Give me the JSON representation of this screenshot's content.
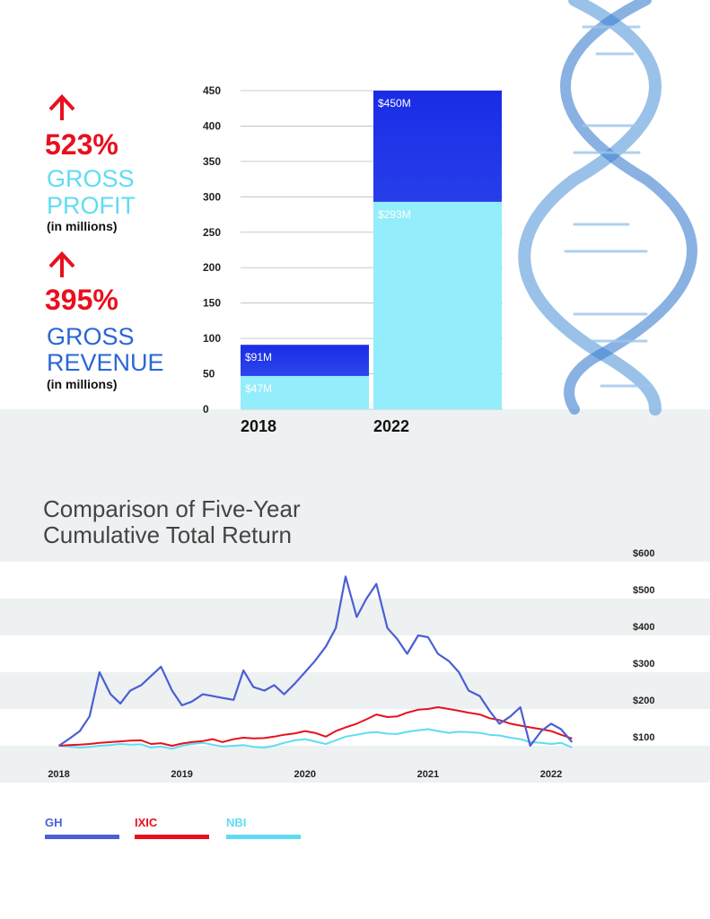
{
  "stats": [
    {
      "value": "523%",
      "label": [
        "GROSS",
        "PROFIT"
      ],
      "note": "(in millions)"
    },
    {
      "value": "395%",
      "label": [
        "GROSS",
        "REVENUE"
      ],
      "note": "(in millions)"
    }
  ],
  "chart_data": [
    {
      "type": "bar",
      "categories": [
        "2018",
        "2022"
      ],
      "series": [
        {
          "color": "#1f36ea",
          "values": [
            91,
            450
          ],
          "value_labels": [
            "$91M",
            "$450M"
          ]
        },
        {
          "color": "#94edfb",
          "values": [
            47,
            293
          ],
          "value_labels": [
            "$47M",
            "$293M"
          ]
        }
      ],
      "ylim": [
        0,
        450
      ],
      "yticks": [
        0,
        50,
        100,
        150,
        200,
        250,
        300,
        350,
        400,
        450
      ],
      "grid": true
    },
    {
      "type": "line",
      "title": [
        "Comparison of Five-Year",
        "Cumulative Total Return"
      ],
      "x": [
        2018.0,
        2018.08,
        2018.17,
        2018.25,
        2018.33,
        2018.42,
        2018.5,
        2018.58,
        2018.67,
        2018.75,
        2018.83,
        2018.92,
        2019.0,
        2019.08,
        2019.17,
        2019.25,
        2019.33,
        2019.42,
        2019.5,
        2019.58,
        2019.67,
        2019.75,
        2019.83,
        2019.92,
        2020.0,
        2020.08,
        2020.17,
        2020.25,
        2020.33,
        2020.42,
        2020.5,
        2020.58,
        2020.67,
        2020.75,
        2020.83,
        2020.92,
        2021.0,
        2021.08,
        2021.17,
        2021.25,
        2021.33,
        2021.42,
        2021.5,
        2021.58,
        2021.67,
        2021.75,
        2021.83,
        2021.92,
        2022.0,
        2022.08,
        2022.17
      ],
      "xlim": [
        2017.85,
        2022.62
      ],
      "xticks": [
        2018,
        2019,
        2020,
        2021,
        2022
      ],
      "ylim": [
        0,
        600
      ],
      "yticks": [
        {
          "value": 100,
          "label": "$100"
        },
        {
          "value": 200,
          "label": "$200"
        },
        {
          "value": 300,
          "label": "$300"
        },
        {
          "value": 400,
          "label": "$400"
        },
        {
          "value": 500,
          "label": "$500"
        },
        {
          "value": 600,
          "label": "$600"
        }
      ],
      "series": [
        {
          "name": "GH",
          "color": "#4a5fd4",
          "values": [
            100,
            118,
            140,
            180,
            300,
            240,
            215,
            250,
            265,
            290,
            315,
            250,
            210,
            220,
            240,
            235,
            230,
            225,
            305,
            260,
            250,
            265,
            240,
            270,
            300,
            330,
            370,
            420,
            560,
            450,
            500,
            540,
            420,
            390,
            350,
            400,
            395,
            350,
            330,
            300,
            250,
            235,
            195,
            160,
            180,
            205,
            100,
            140,
            160,
            145,
            110
          ]
        },
        {
          "name": "IXIC",
          "color": "#e8101e",
          "values": [
            100,
            102,
            103,
            105,
            108,
            110,
            112,
            114,
            115,
            105,
            107,
            100,
            106,
            110,
            113,
            118,
            110,
            118,
            122,
            120,
            121,
            125,
            130,
            134,
            140,
            135,
            125,
            140,
            150,
            160,
            172,
            185,
            178,
            180,
            190,
            198,
            200,
            205,
            200,
            195,
            190,
            185,
            175,
            170,
            160,
            155,
            150,
            145,
            140,
            130,
            120
          ]
        },
        {
          "name": "NBI",
          "color": "#5fdcf2",
          "values": [
            100,
            98,
            95,
            97,
            100,
            102,
            105,
            103,
            104,
            95,
            98,
            92,
            100,
            105,
            108,
            103,
            98,
            100,
            102,
            97,
            95,
            100,
            108,
            115,
            118,
            112,
            105,
            115,
            125,
            130,
            135,
            137,
            133,
            132,
            138,
            142,
            145,
            140,
            135,
            138,
            137,
            135,
            130,
            128,
            122,
            118,
            110,
            108,
            105,
            108,
            95
          ]
        }
      ]
    }
  ]
}
